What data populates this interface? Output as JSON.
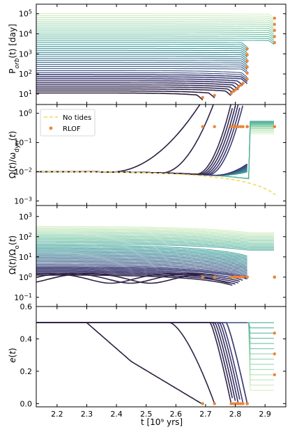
{
  "chart_data": [
    {
      "type": "line",
      "panel": "orbital-period",
      "ylabel_html": "P<tspan font-style='italic' baseline-shift='sub' font-size='9'>orb</tspan>(t) [day]",
      "ylabel": "P_orb(t) [day]",
      "yscale": "log",
      "ylim": [
        3,
        300000
      ],
      "yticks": [
        {
          "v": 10,
          "t": "10",
          "e": "1"
        },
        {
          "v": 100,
          "t": "10",
          "e": "2"
        },
        {
          "v": 1000,
          "t": "10",
          "e": "3"
        },
        {
          "v": 10000,
          "t": "10",
          "e": "4"
        },
        {
          "v": 100000,
          "t": "10",
          "e": "5"
        }
      ],
      "xlim": [
        2.13,
        2.97
      ],
      "n_series": 40,
      "series_color_range": [
        "#2c1e3d",
        "#d7efc0"
      ],
      "rlof_color": "#e8883a"
    },
    {
      "type": "line",
      "panel": "spin-ratio-dyn",
      "ylabel": "Ω(t)/ω_dyn(t)",
      "yscale": "log",
      "ylim": [
        0.0007,
        2
      ],
      "yticks": [
        {
          "v": 0.001,
          "t": "10",
          "e": "−3"
        },
        {
          "v": 0.01,
          "t": "10",
          "e": "−2"
        },
        {
          "v": 0.1,
          "t": "10",
          "e": "−1"
        },
        {
          "v": 1,
          "t": "10",
          "e": "0"
        }
      ],
      "xlim": [
        2.13,
        2.97
      ],
      "legend": {
        "position": "upper-left",
        "entries": [
          "No tides",
          "RLOF"
        ]
      },
      "no_tides_color": "#f2dc5d"
    },
    {
      "type": "line",
      "panel": "spin-ratio-orb",
      "ylabel": "Ω(t)/Ω_o(t)",
      "yscale": "log",
      "ylim": [
        0.035,
        3500
      ],
      "yticks": [
        {
          "v": 0.1,
          "t": "10",
          "e": "−1"
        },
        {
          "v": 1,
          "t": "10",
          "e": "0"
        },
        {
          "v": 10,
          "t": "10",
          "e": "1"
        },
        {
          "v": 100,
          "t": "10",
          "e": "2"
        },
        {
          "v": 1000,
          "t": "10",
          "e": "3"
        }
      ],
      "xlim": [
        2.13,
        2.97
      ]
    },
    {
      "type": "line",
      "panel": "eccentricity",
      "ylabel": "e(t)",
      "yscale": "linear",
      "ylim": [
        -0.02,
        0.6
      ],
      "yticks": [
        {
          "v": 0.0,
          "t": "0.0"
        },
        {
          "v": 0.2,
          "t": "0.2"
        },
        {
          "v": 0.4,
          "t": "0.4"
        },
        {
          "v": 0.6,
          "t": "0.6"
        }
      ],
      "xlim": [
        2.13,
        2.97
      ],
      "xticks": [
        2.2,
        2.3,
        2.4,
        2.5,
        2.6,
        2.7,
        2.8,
        2.9
      ],
      "xlabel": "t [10⁹ yrs]"
    }
  ],
  "labels": {
    "legend_no_tides": "No tides",
    "legend_rlof": "RLOF",
    "xlabel": "t [10⁹ yrs]"
  }
}
